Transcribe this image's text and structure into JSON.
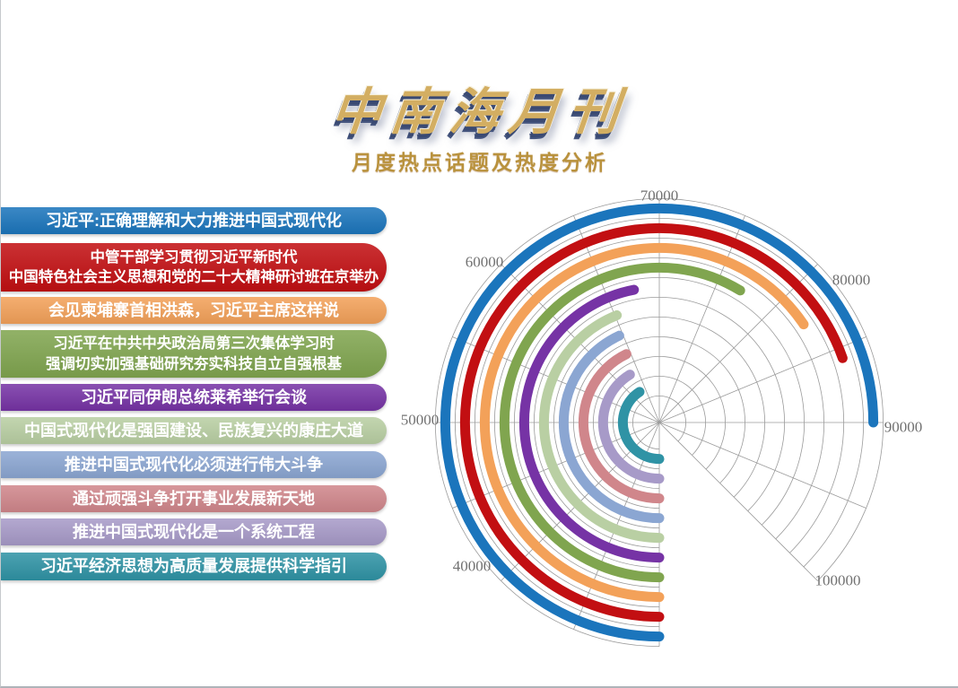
{
  "page": {
    "title": "中南海月刊",
    "subtitle": "月度热点话题及热度分析",
    "background_color": "#ffffff",
    "title_color": "#d3ae62",
    "subtitle_color": "#b9923d"
  },
  "topics": [
    {
      "rank": 1,
      "lines": [
        "习近平:正确理解和大力推进中国式现代化"
      ]
    },
    {
      "rank": 2,
      "lines": [
        "中管干部学习贯彻习近平新时代",
        "中国特色社会主义思想和党的二十大精神研讨班在京举办"
      ]
    },
    {
      "rank": 3,
      "lines": [
        "会见柬埔寨首相洪森，习近平主席这样说"
      ]
    },
    {
      "rank": 4,
      "lines": [
        "习近平在中共中央政治局第三次集体学习时",
        "强调切实加强基础研究夯实科技自立自强根基"
      ]
    },
    {
      "rank": 5,
      "lines": [
        "习近平同伊朗总统莱希举行会谈"
      ]
    },
    {
      "rank": 6,
      "lines": [
        "中国式现代化是强国建设、民族复兴的康庄大道"
      ]
    },
    {
      "rank": 7,
      "lines": [
        "推进中国式现代化必须进行伟大斗争"
      ]
    },
    {
      "rank": 8,
      "lines": [
        "通过顽强斗争打开事业发展新天地"
      ]
    },
    {
      "rank": 9,
      "lines": [
        "推进中国式现代化是一个系统工程"
      ]
    },
    {
      "rank": 10,
      "lines": [
        "习近平经济思想为高质量发展提供科学指引"
      ]
    }
  ],
  "chart_data": {
    "type": "radial-bar",
    "title": "月度热点话题及热度分析",
    "categories": [
      "习近平:正确理解和大力推进中国式现代化",
      "中管干部学习贯彻习近平新时代 中国特色社会主义思想和党的二十大精神研讨班在京举办",
      "会见柬埔寨首相洪森，习近平主席这样说",
      "习近平在中共中央政治局第三次集体学习时 强调切实加强基础研究夯实科技自立自强根基",
      "习近平同伊朗总统莱希举行会谈",
      "中国式现代化是强国建设、民族复兴的康庄大道",
      "推进中国式现代化必须进行伟大斗争",
      "通过顽强斗争打开事业发展新天地",
      "推进中国式现代化是一个系统工程",
      "习近平经济思想为高质量发展提供科学指引"
    ],
    "series": [
      {
        "name": "热度",
        "values": [
          90000,
          85700,
          82400,
          77000,
          67600,
          65200,
          64500,
          64300,
          63000,
          62700
        ]
      }
    ],
    "colors": [
      "#1b75bc",
      "#c20f12",
      "#f3a159",
      "#80a54f",
      "#7633a5",
      "#b9cfa3",
      "#8ba6d2",
      "#d0868b",
      "#a79ac8",
      "#2f93a5"
    ],
    "angular_axis": {
      "min": 30000,
      "max": 100000,
      "tick_interval": 10000,
      "tick_labels": [
        "40000",
        "50000",
        "60000",
        "70000",
        "80000",
        "90000",
        "100000"
      ],
      "start_position": "bottom",
      "direction": "clockwise",
      "value_per_45_degrees": 10000
    },
    "layout_hints": {
      "rings": "topic 1 outermost ring, topic 10 innermost",
      "grid": "polar grid: concentric circles and spokes every 22.5 degrees, spanning 315 degrees from bottom clockwise",
      "legend_position": "left list of colored bars"
    }
  }
}
